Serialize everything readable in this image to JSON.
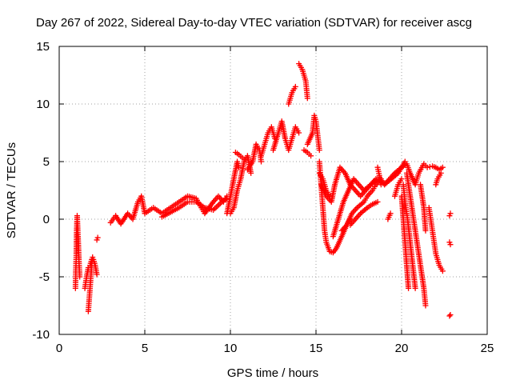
{
  "chart_data": {
    "type": "scatter",
    "title": "Day 267 of 2022, Sidereal Day-to-day VTEC variation (SDTVAR) for receiver ascg",
    "xlabel": "GPS time / hours",
    "ylabel": "SDTVAR / TECUs",
    "xlim": [
      0,
      25
    ],
    "ylim": [
      -10,
      15
    ],
    "xticks": [
      "0",
      "5",
      "10",
      "15",
      "20",
      "25"
    ],
    "yticks": [
      "-10",
      "-5",
      "0",
      "5",
      "10",
      "15"
    ],
    "grid": true,
    "marker": "+",
    "series": [
      {
        "name": "SDTVAR",
        "color": "#ff0000",
        "tracks": [
          [
            [
              0.95,
              -6.0
            ],
            [
              0.97,
              -4.5
            ],
            [
              1.0,
              -3.0
            ],
            [
              1.02,
              -1.0
            ],
            [
              1.05,
              0.3
            ],
            [
              1.1,
              -1.5
            ],
            [
              1.15,
              -3.5
            ],
            [
              1.2,
              -5.0
            ]
          ],
          [
            [
              1.5,
              -6.0
            ],
            [
              1.6,
              -5.0
            ],
            [
              1.7,
              -4.2
            ],
            [
              1.8,
              -4.0
            ],
            [
              1.9,
              -3.5
            ]
          ],
          [
            [
              1.7,
              -8.0
            ],
            [
              1.75,
              -7.0
            ],
            [
              1.8,
              -6.0
            ],
            [
              1.85,
              -5.0
            ],
            [
              1.9,
              -4.0
            ],
            [
              1.95,
              -3.3
            ],
            [
              2.0,
              -3.5
            ],
            [
              2.1,
              -4.0
            ],
            [
              2.2,
              -4.8
            ]
          ],
          [
            [
              2.2,
              -1.8
            ],
            [
              2.25,
              -1.6
            ]
          ],
          [
            [
              3.0,
              -0.3
            ],
            [
              3.3,
              0.3
            ],
            [
              3.6,
              -0.4
            ],
            [
              4.0,
              0.5
            ],
            [
              4.3,
              0.0
            ],
            [
              4.6,
              1.5
            ],
            [
              4.8,
              2.0
            ],
            [
              5.0,
              0.5
            ],
            [
              5.5,
              1.0
            ],
            [
              6.0,
              0.5
            ],
            [
              6.5,
              1.0
            ],
            [
              7.0,
              1.5
            ],
            [
              7.5,
              2.0
            ],
            [
              8.0,
              1.8
            ],
            [
              8.3,
              1.0
            ],
            [
              8.5,
              0.5
            ],
            [
              9.0,
              1.5
            ],
            [
              9.3,
              2.0
            ],
            [
              9.6,
              1.5
            ],
            [
              9.8,
              2.0
            ]
          ],
          [
            [
              6.0,
              0.2
            ],
            [
              6.5,
              0.6
            ],
            [
              7.0,
              1.0
            ],
            [
              7.5,
              1.5
            ],
            [
              8.0,
              1.5
            ],
            [
              8.5,
              1.0
            ],
            [
              9.0,
              0.8
            ],
            [
              9.5,
              1.5
            ],
            [
              9.8,
              1.8
            ]
          ],
          [
            [
              9.8,
              0.5
            ],
            [
              10.0,
              2.0
            ],
            [
              10.2,
              3.5
            ],
            [
              10.4,
              5.0
            ],
            [
              10.5,
              4.5
            ]
          ],
          [
            [
              10.0,
              0.5
            ],
            [
              10.2,
              1.0
            ],
            [
              10.4,
              2.5
            ],
            [
              10.6,
              3.5
            ],
            [
              10.8,
              5.0
            ],
            [
              11.0,
              5.5
            ],
            [
              11.2,
              4.0
            ]
          ],
          [
            [
              10.3,
              5.8
            ],
            [
              10.5,
              5.6
            ],
            [
              10.8,
              5.2
            ]
          ],
          [
            [
              11.0,
              4.3
            ],
            [
              11.3,
              5.0
            ],
            [
              11.5,
              6.5
            ],
            [
              11.7,
              6.0
            ],
            [
              11.8,
              5.0
            ]
          ],
          [
            [
              11.8,
              5.5
            ],
            [
              12.0,
              6.5
            ],
            [
              12.2,
              7.5
            ],
            [
              12.4,
              8.0
            ],
            [
              12.6,
              7.0
            ]
          ],
          [
            [
              12.5,
              6.0
            ],
            [
              12.8,
              7.5
            ],
            [
              13.0,
              8.5
            ],
            [
              13.2,
              7.0
            ],
            [
              13.4,
              6.0
            ],
            [
              13.6,
              7.0
            ],
            [
              13.8,
              8.0
            ],
            [
              14.0,
              7.5
            ]
          ],
          [
            [
              13.4,
              10.0
            ],
            [
              13.6,
              11.0
            ],
            [
              13.8,
              11.5
            ]
          ],
          [
            [
              14.0,
              13.5
            ],
            [
              14.2,
              13.0
            ],
            [
              14.4,
              12.0
            ],
            [
              14.5,
              10.5
            ]
          ],
          [
            [
              14.5,
              6.5
            ],
            [
              14.8,
              7.5
            ],
            [
              14.9,
              9.0
            ],
            [
              15.0,
              8.5
            ],
            [
              15.2,
              6.0
            ]
          ],
          [
            [
              14.3,
              6.0
            ],
            [
              14.5,
              5.8
            ],
            [
              14.7,
              5.5
            ]
          ],
          [
            [
              15.2,
              4.0
            ],
            [
              15.4,
              3.5
            ],
            [
              15.6,
              2.5
            ],
            [
              15.8,
              2.0
            ]
          ],
          [
            [
              15.2,
              5.0
            ],
            [
              15.35,
              2.0
            ],
            [
              15.5,
              -1.0
            ],
            [
              15.6,
              -2.0
            ],
            [
              15.8,
              -2.8
            ],
            [
              16.0,
              -2.9
            ],
            [
              16.2,
              -2.5
            ],
            [
              16.5,
              -1.5
            ],
            [
              16.8,
              -0.5
            ],
            [
              17.1,
              0.5
            ],
            [
              17.4,
              1.0
            ],
            [
              17.8,
              1.5
            ],
            [
              18.0,
              2.0
            ],
            [
              18.3,
              2.5
            ],
            [
              18.5,
              3.0
            ],
            [
              18.8,
              3.5
            ],
            [
              19.0,
              3.0
            ],
            [
              19.3,
              3.5
            ],
            [
              19.6,
              4.0
            ],
            [
              20.0,
              4.5
            ],
            [
              20.3,
              4.8
            ],
            [
              20.5,
              4.0
            ],
            [
              20.8,
              3.0
            ],
            [
              21.0,
              4.0
            ],
            [
              21.3,
              4.8
            ],
            [
              21.5,
              4.5
            ],
            [
              21.8,
              4.6
            ],
            [
              22.0,
              4.5
            ],
            [
              22.2,
              4.3
            ],
            [
              22.4,
              4.5
            ]
          ],
          [
            [
              15.3,
              3.0
            ],
            [
              15.6,
              2.0
            ],
            [
              15.9,
              1.5
            ],
            [
              16.1,
              3.0
            ],
            [
              16.4,
              4.5
            ],
            [
              16.7,
              4.0
            ],
            [
              17.0,
              3.0
            ],
            [
              17.3,
              2.5
            ],
            [
              17.6,
              2.0
            ],
            [
              17.9,
              2.5
            ],
            [
              18.2,
              3.0
            ],
            [
              18.5,
              3.5
            ]
          ],
          [
            [
              16.0,
              -1.5
            ],
            [
              16.3,
              0.0
            ],
            [
              16.6,
              1.5
            ],
            [
              16.9,
              2.5
            ],
            [
              17.2,
              3.5
            ],
            [
              17.5,
              3.0
            ],
            [
              17.8,
              2.5
            ],
            [
              18.2,
              3.0
            ],
            [
              18.6,
              3.5
            ],
            [
              19.0,
              3.0
            ],
            [
              19.4,
              3.5
            ],
            [
              19.8,
              4.0
            ],
            [
              20.2,
              5.0
            ]
          ],
          [
            [
              17.0,
              -0.5
            ],
            [
              17.3,
              0.0
            ],
            [
              17.6,
              0.5
            ],
            [
              18.0,
              1.0
            ],
            [
              18.3,
              1.3
            ],
            [
              18.6,
              1.5
            ]
          ],
          [
            [
              16.5,
              -1.0
            ],
            [
              16.8,
              -0.5
            ],
            [
              17.0,
              0.0
            ]
          ],
          [
            [
              18.6,
              4.5
            ],
            [
              18.7,
              3.8
            ],
            [
              18.8,
              3.0
            ]
          ],
          [
            [
              19.2,
              0.0
            ],
            [
              19.35,
              0.5
            ]
          ],
          [
            [
              19.6,
              2.0
            ],
            [
              19.8,
              3.0
            ],
            [
              20.0,
              3.5
            ]
          ],
          [
            [
              20.0,
              2.0
            ],
            [
              20.1,
              0.0
            ],
            [
              20.2,
              -2.0
            ],
            [
              20.3,
              -4.0
            ],
            [
              20.4,
              -6.0
            ]
          ],
          [
            [
              20.1,
              3.0
            ],
            [
              20.2,
              1.5
            ],
            [
              20.35,
              0.0
            ],
            [
              20.5,
              -2.0
            ],
            [
              20.65,
              -4.0
            ],
            [
              20.8,
              -6.0
            ]
          ],
          [
            [
              20.3,
              4.0
            ],
            [
              20.5,
              2.0
            ],
            [
              20.7,
              0.0
            ],
            [
              20.9,
              -2.0
            ],
            [
              21.1,
              -4.0
            ],
            [
              21.3,
              -6.0
            ],
            [
              21.4,
              -7.5
            ]
          ],
          [
            [
              21.1,
              3.0
            ],
            [
              21.3,
              1.0
            ],
            [
              21.4,
              -1.0
            ]
          ],
          [
            [
              21.6,
              1.0
            ],
            [
              21.7,
              0.0
            ],
            [
              21.8,
              -1.0
            ],
            [
              21.9,
              -2.0
            ],
            [
              22.0,
              -3.0
            ],
            [
              22.2,
              -4.0
            ],
            [
              22.4,
              -4.5
            ]
          ],
          [
            [
              22.0,
              3.0
            ],
            [
              22.1,
              3.5
            ],
            [
              22.3,
              4.0
            ]
          ],
          [
            [
              22.8,
              0.3
            ],
            [
              22.85,
              0.5
            ]
          ],
          [
            [
              22.8,
              -2.0
            ],
            [
              22.85,
              -2.2
            ]
          ],
          [
            [
              22.8,
              -8.4
            ],
            [
              22.85,
              -8.3
            ]
          ]
        ]
      }
    ]
  }
}
